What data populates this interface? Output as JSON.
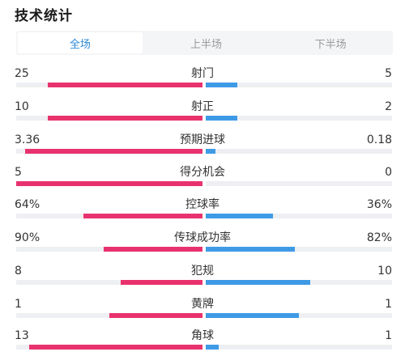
{
  "header": {
    "title": "技术统计"
  },
  "tabs": [
    {
      "label": "全场",
      "active": true
    },
    {
      "label": "上半场",
      "active": false
    },
    {
      "label": "下半场",
      "active": false
    }
  ],
  "colors": {
    "home": "#e8326e",
    "away": "#3f9ae6",
    "accent": "#2b88d8",
    "track": "#eeeff2"
  },
  "stats": [
    {
      "label": "射门",
      "home": "25",
      "away": "5",
      "home_fill": 0.83,
      "away_fill": 0.17
    },
    {
      "label": "射正",
      "home": "10",
      "away": "2",
      "home_fill": 0.83,
      "away_fill": 0.17
    },
    {
      "label": "预期进球",
      "home": "3.36",
      "away": "0.18",
      "home_fill": 0.95,
      "away_fill": 0.05
    },
    {
      "label": "得分机会",
      "home": "5",
      "away": "0",
      "home_fill": 1.0,
      "away_fill": 0.0
    },
    {
      "label": "控球率",
      "home": "64%",
      "away": "36%",
      "home_fill": 0.64,
      "away_fill": 0.36
    },
    {
      "label": "传球成功率",
      "home": "90%",
      "away": "82%",
      "home_fill": 0.53,
      "away_fill": 0.48
    },
    {
      "label": "犯规",
      "home": "8",
      "away": "10",
      "home_fill": 0.44,
      "away_fill": 0.56
    },
    {
      "label": "黄牌",
      "home": "1",
      "away": "1",
      "home_fill": 0.5,
      "away_fill": 0.5
    },
    {
      "label": "角球",
      "home": "13",
      "away": "1",
      "home_fill": 0.93,
      "away_fill": 0.07
    }
  ]
}
